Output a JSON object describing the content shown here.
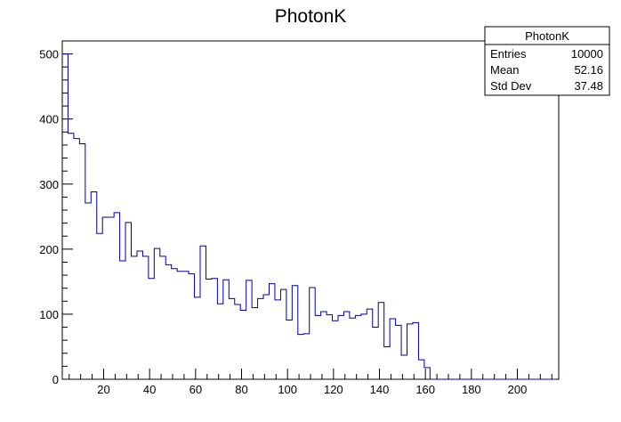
{
  "chart_data": {
    "type": "histogram",
    "title": "PhotonK",
    "xlabel": "",
    "ylabel": "",
    "xlim": [
      2,
      218
    ],
    "ylim": [
      0,
      520
    ],
    "bin_width": 2.5,
    "x_start": 2,
    "x_ticks": [
      20,
      40,
      60,
      80,
      100,
      120,
      140,
      160,
      180,
      200
    ],
    "y_ticks": [
      0,
      100,
      200,
      300,
      400,
      500
    ],
    "values": [
      500,
      378,
      370,
      362,
      271,
      288,
      224,
      249,
      249,
      256,
      182,
      241,
      189,
      197,
      189,
      155,
      201,
      189,
      176,
      170,
      166,
      166,
      162,
      126,
      205,
      154,
      155,
      116,
      153,
      124,
      115,
      106,
      152,
      110,
      124,
      130,
      147,
      122,
      138,
      91,
      144,
      69,
      70,
      141,
      98,
      104,
      99,
      90,
      98,
      104,
      94,
      98,
      100,
      108,
      80,
      118,
      50,
      93,
      83,
      37,
      85,
      87,
      30,
      18,
      0,
      0,
      0,
      0,
      0,
      0,
      0,
      0,
      0,
      0,
      0,
      0,
      0,
      0,
      0,
      0,
      0,
      0,
      0,
      0,
      0,
      0
    ],
    "stats": {
      "title": "PhotonK",
      "rows": [
        {
          "label": "Entries",
          "value": "10000"
        },
        {
          "label": "Mean",
          "value": "52.16"
        },
        {
          "label": "Std Dev",
          "value": "37.48"
        }
      ]
    },
    "colors": {
      "line": "#000099",
      "frame": "#000000"
    },
    "grid": false,
    "legend_position": "top-right"
  }
}
